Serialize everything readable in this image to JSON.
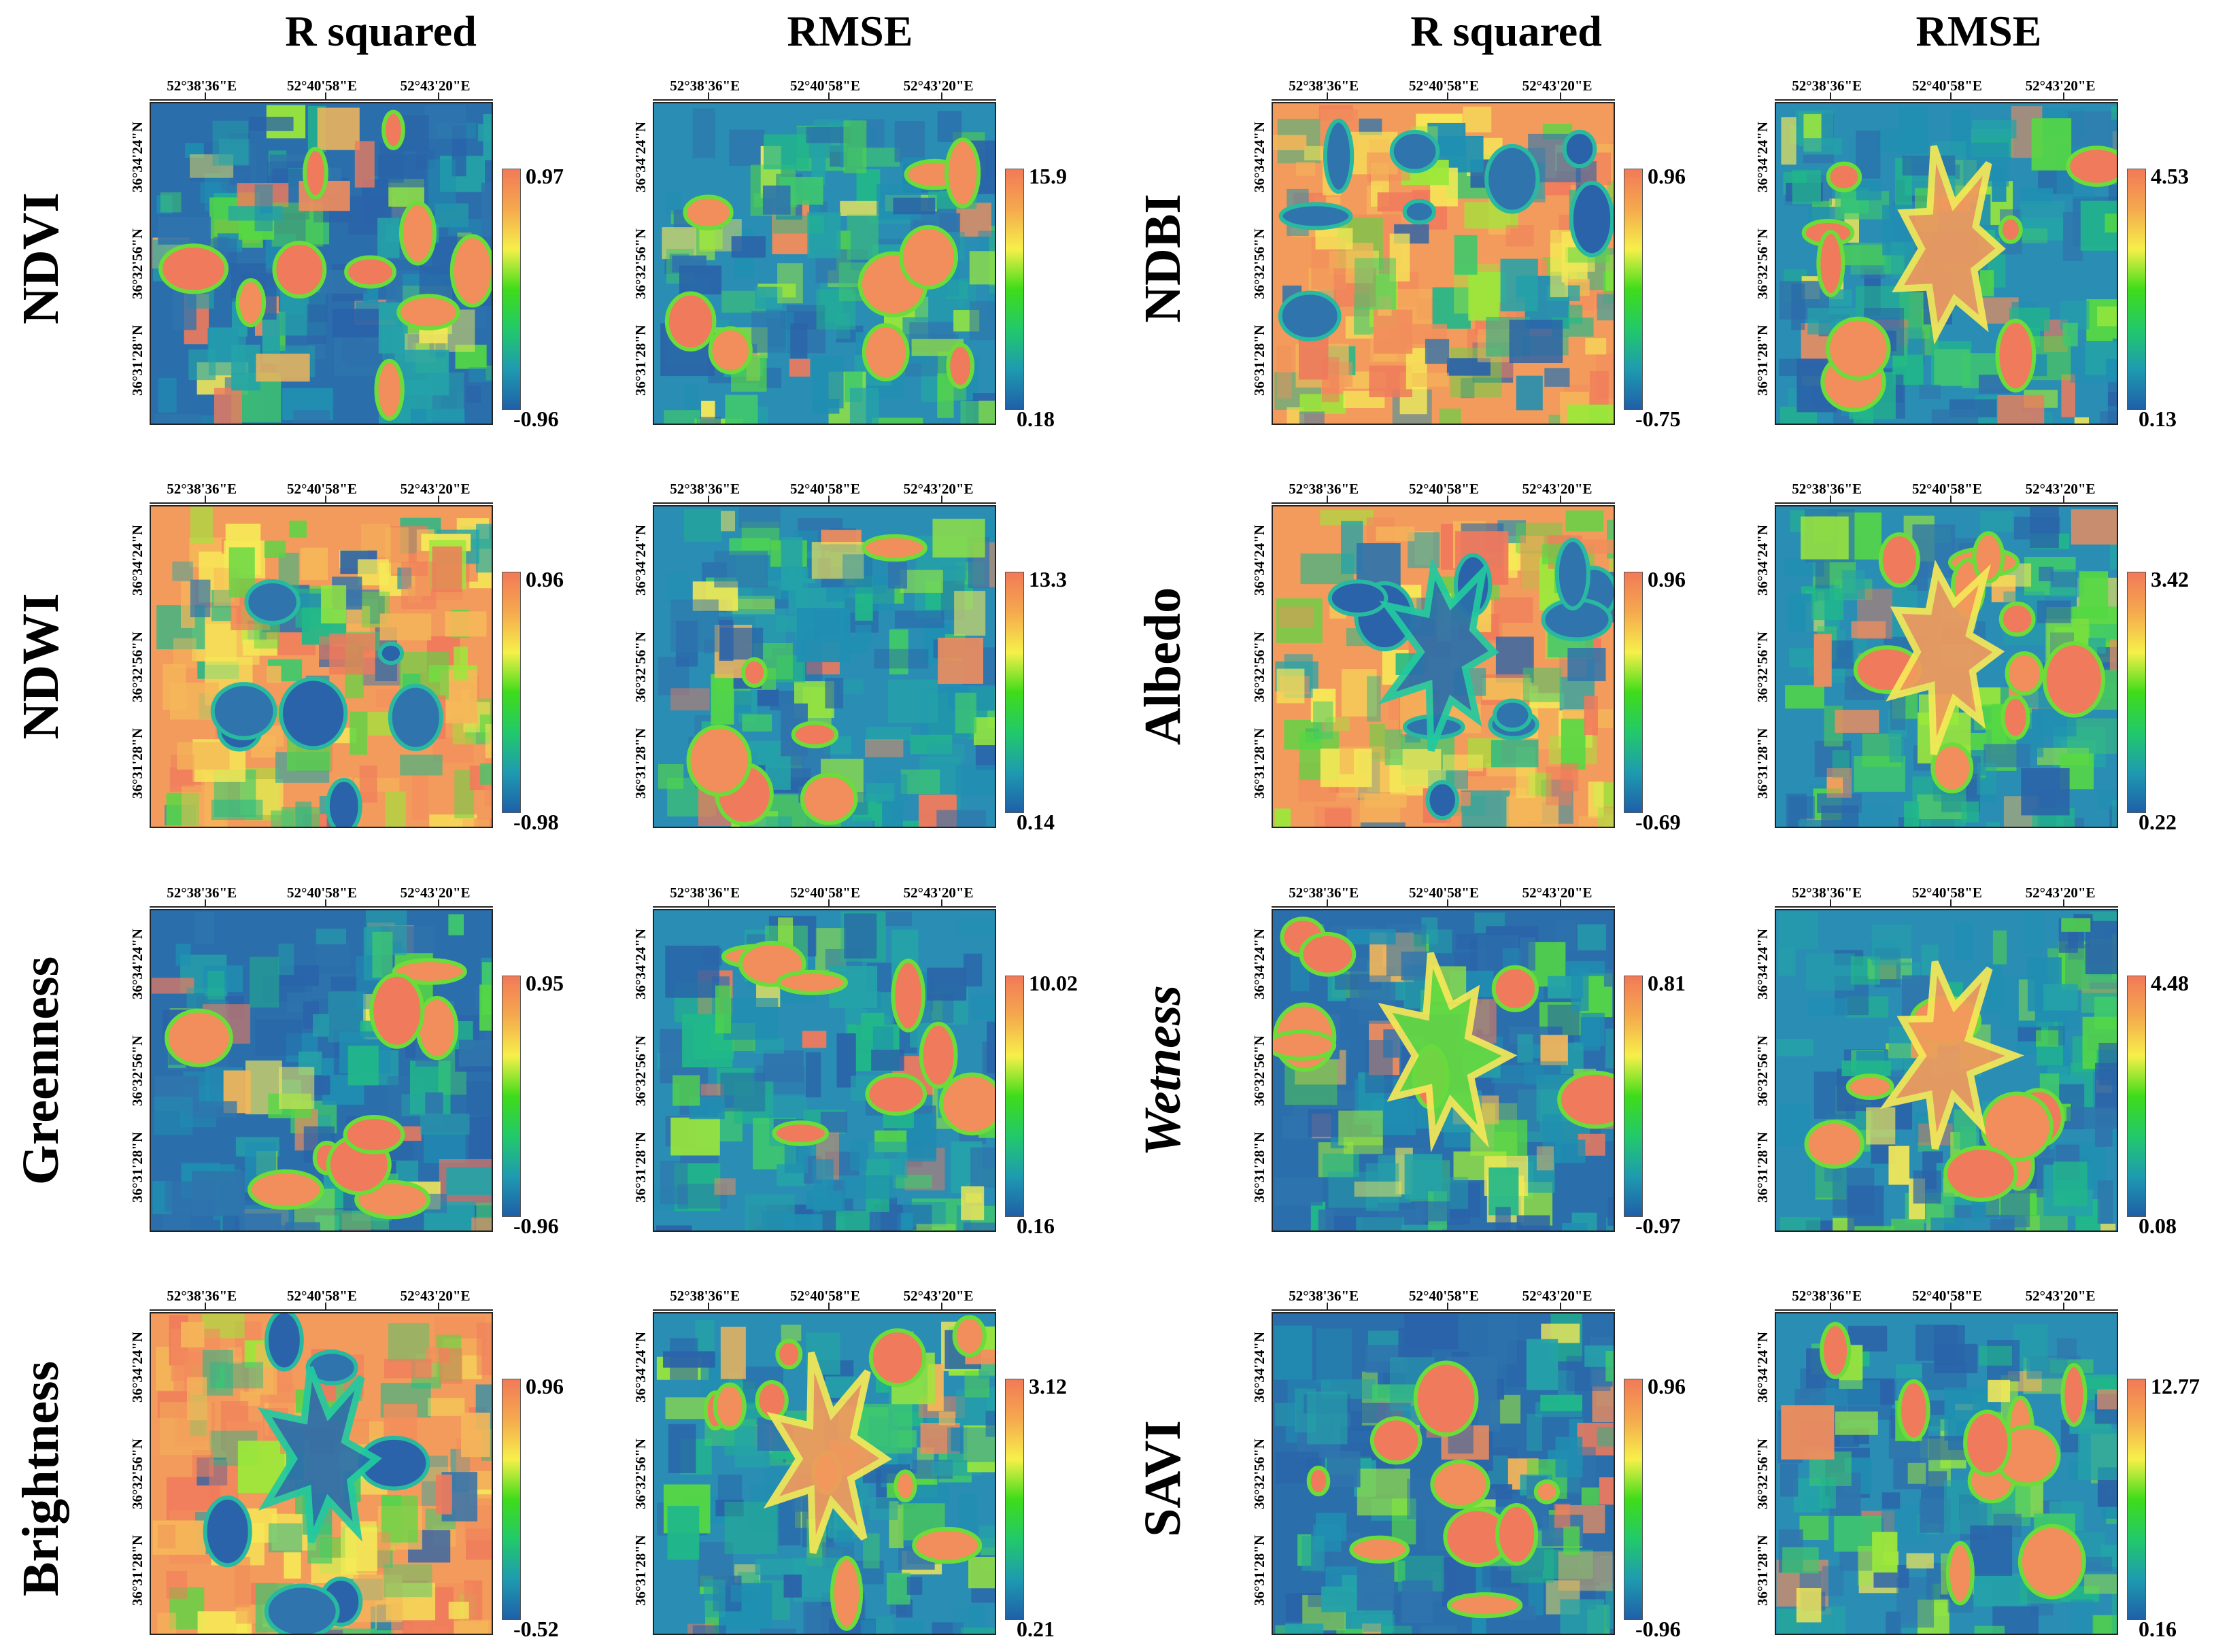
{
  "headers": {
    "col1": "R squared",
    "col2": "RMSE",
    "col3": "R squared",
    "col4": "RMSE"
  },
  "axes": {
    "lon": [
      "52°38'36\"E",
      "52°40'58\"E",
      "52°43'20\"E"
    ],
    "lat": [
      "36°34'24\"N",
      "36°32'56\"N",
      "36°31'28\"N"
    ]
  },
  "colorbar": {
    "colors": [
      "#1f5fa8",
      "#1e9bb0",
      "#22c96a",
      "#3fdc1a",
      "#f6f04a",
      "#f5a94e",
      "#f27a58"
    ]
  },
  "panels": [
    {
      "row": 0,
      "col": 0,
      "label": "NDVI",
      "metric": "R squared",
      "max": "0.97",
      "min": "-0.96"
    },
    {
      "row": 0,
      "col": 1,
      "label": "NDVI",
      "metric": "RMSE",
      "max": "15.9",
      "min": "0.18"
    },
    {
      "row": 0,
      "col": 2,
      "label": "NDBI",
      "metric": "R squared",
      "max": "0.96",
      "min": "-0.75"
    },
    {
      "row": 0,
      "col": 3,
      "label": "NDBI",
      "metric": "RMSE",
      "max": "4.53",
      "min": "0.13"
    },
    {
      "row": 1,
      "col": 0,
      "label": "NDWI",
      "metric": "R squared",
      "max": "0.96",
      "min": "-0.98"
    },
    {
      "row": 1,
      "col": 1,
      "label": "NDWI",
      "metric": "RMSE",
      "max": "13.3",
      "min": "0.14"
    },
    {
      "row": 1,
      "col": 2,
      "label": "Albedo",
      "metric": "R squared",
      "max": "0.96",
      "min": "-0.69"
    },
    {
      "row": 1,
      "col": 3,
      "label": "Albedo",
      "metric": "RMSE",
      "max": "3.42",
      "min": "0.22"
    },
    {
      "row": 2,
      "col": 0,
      "label": "Greenness",
      "metric": "R squared",
      "max": "0.95",
      "min": "-0.96"
    },
    {
      "row": 2,
      "col": 1,
      "label": "Greenness",
      "metric": "RMSE",
      "max": "10.02",
      "min": "0.16"
    },
    {
      "row": 2,
      "col": 2,
      "label": "Wetness",
      "metric": "R squared",
      "max": "0.81",
      "min": "-0.97"
    },
    {
      "row": 2,
      "col": 3,
      "label": "Wetness",
      "metric": "RMSE",
      "max": "4.48",
      "min": "0.08"
    },
    {
      "row": 3,
      "col": 0,
      "label": "Brightness",
      "metric": "R squared",
      "max": "0.96",
      "min": "-0.52"
    },
    {
      "row": 3,
      "col": 1,
      "label": "Brightness",
      "metric": "RMSE",
      "max": "3.12",
      "min": "0.21"
    },
    {
      "row": 3,
      "col": 2,
      "label": "SAVI",
      "metric": "R squared",
      "max": "0.96",
      "min": "-0.96"
    },
    {
      "row": 3,
      "col": 3,
      "label": "SAVI",
      "metric": "RMSE",
      "max": "12.77",
      "min": "0.16"
    }
  ],
  "rowLabels": {
    "left": [
      "NDVI",
      "NDWI",
      "Greenness",
      "Brightness"
    ],
    "right": [
      "NDBI",
      "Albedo",
      "Wetness",
      "SAVI"
    ]
  }
}
